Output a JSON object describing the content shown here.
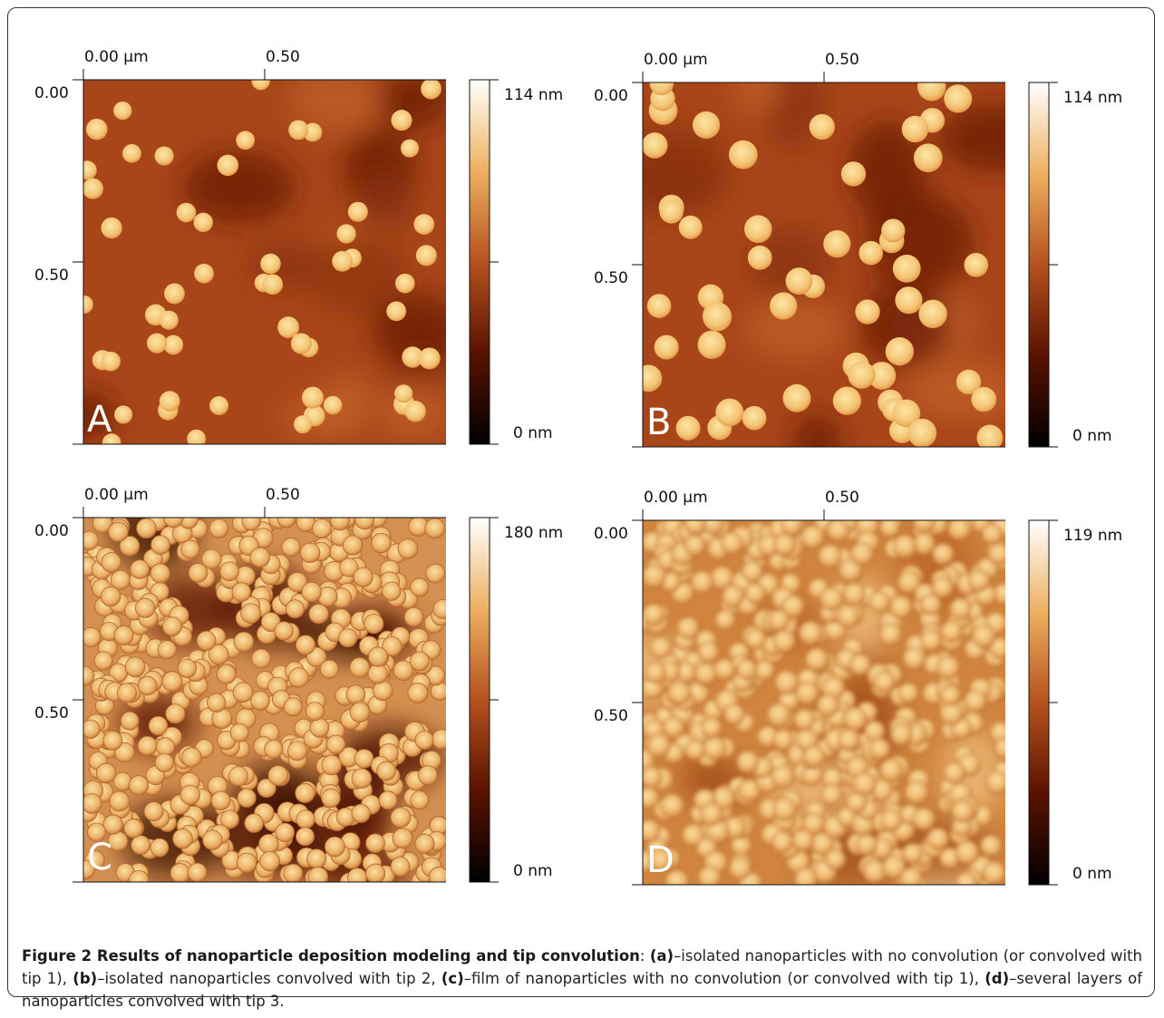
{
  "figure": {
    "panels": [
      {
        "letter": "A",
        "x_labels": [
          "0.00 µm",
          "0.50"
        ],
        "y_labels": [
          "0.00",
          "0.50"
        ],
        "scale_max": "114 nm",
        "scale_min": "0 nm"
      },
      {
        "letter": "B",
        "x_labels": [
          "0.00 µm",
          "0.50"
        ],
        "y_labels": [
          "0.00",
          "0.50"
        ],
        "scale_max": "114 nm",
        "scale_min": "0 nm"
      },
      {
        "letter": "C",
        "x_labels": [
          "0.00 µm",
          "0.50"
        ],
        "y_labels": [
          "0.00",
          "0.50"
        ],
        "scale_max": "180 nm",
        "scale_min": "0 nm"
      },
      {
        "letter": "D",
        "x_labels": [
          "0.00 µm",
          "0.50"
        ],
        "y_labels": [
          "0.00",
          "0.50"
        ],
        "scale_max": "119 nm",
        "scale_min": "0 nm"
      }
    ],
    "caption": {
      "title": "Figure 2 Results of nanoparticle deposition modeling and tip convolution",
      "title_punct": ": ",
      "parts": [
        {
          "label": "(a)",
          "text": "–isolated nanoparticles with no convolution (or convolved with tip 1), "
        },
        {
          "label": "(b)",
          "text": "–isolated nanoparticles convolved with tip 2, "
        },
        {
          "label": "(c)",
          "text": "–film of nanoparticles with no convolution (or convolved with tip 1), "
        },
        {
          "label": "(d)",
          "text": "–several layers of nanoparticles convolved with tip 3."
        }
      ]
    }
  }
}
